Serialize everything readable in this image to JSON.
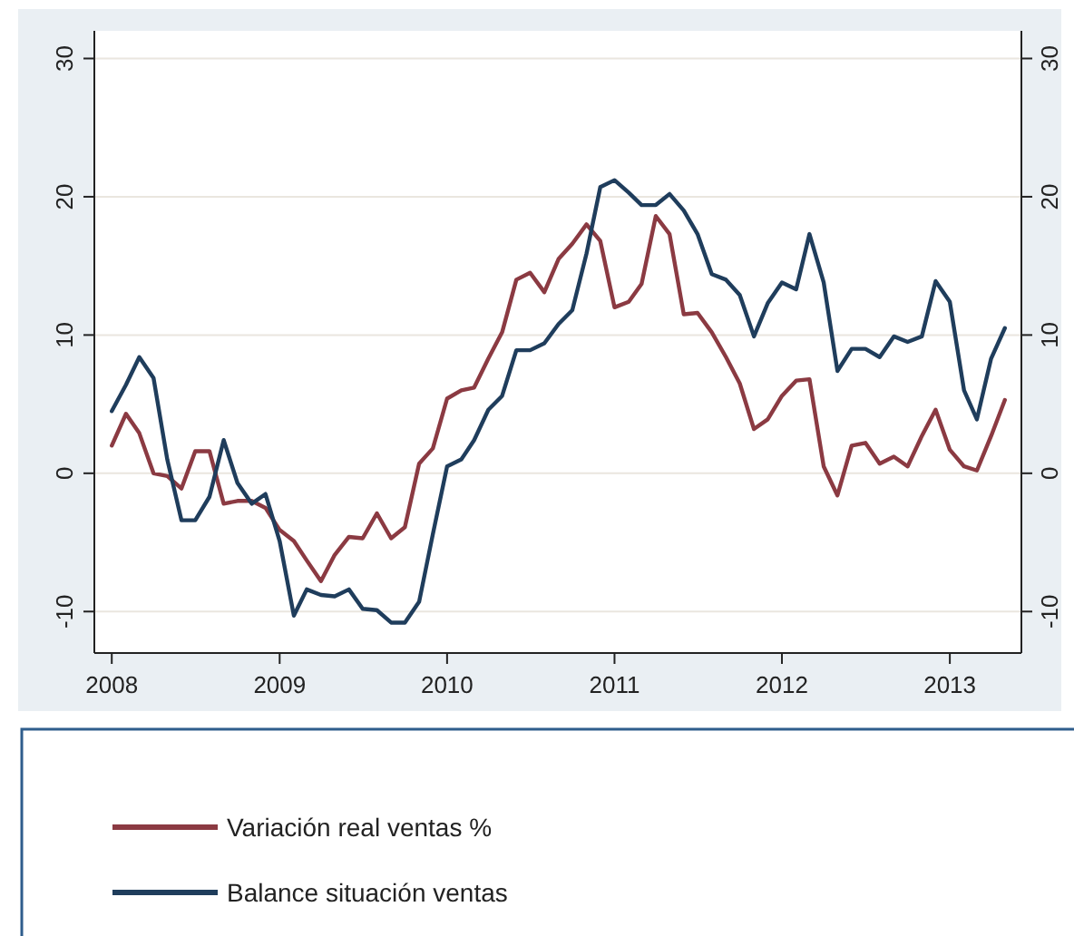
{
  "chart_data": {
    "type": "line",
    "x": [
      "2008-01",
      "2008-02",
      "2008-03",
      "2008-04",
      "2008-05",
      "2008-06",
      "2008-07",
      "2008-08",
      "2008-09",
      "2008-10",
      "2008-11",
      "2008-12",
      "2009-01",
      "2009-02",
      "2009-03",
      "2009-04",
      "2009-05",
      "2009-06",
      "2009-07",
      "2009-08",
      "2009-09",
      "2009-10",
      "2009-11",
      "2009-12",
      "2010-01",
      "2010-02",
      "2010-03",
      "2010-04",
      "2010-05",
      "2010-06",
      "2010-07",
      "2010-08",
      "2010-09",
      "2010-10",
      "2010-11",
      "2010-12",
      "2011-01",
      "2011-02",
      "2011-03",
      "2011-04",
      "2011-05",
      "2011-06",
      "2011-07",
      "2011-08",
      "2011-09",
      "2011-10",
      "2011-11",
      "2011-12",
      "2012-01",
      "2012-02",
      "2012-03",
      "2012-04",
      "2012-05",
      "2012-06",
      "2012-07",
      "2012-08",
      "2012-09",
      "2012-10",
      "2012-11",
      "2012-12",
      "2013-01",
      "2013-02",
      "2013-03",
      "2013-04",
      "2013-05"
    ],
    "series": [
      {
        "name": "Variación real ventas %",
        "color": "#8b3a42",
        "values": [
          2.0,
          4.3,
          2.9,
          0,
          -0.2,
          -1.1,
          1.6,
          1.6,
          -2.2,
          -2.0,
          -2.0,
          -2.5,
          -4.1,
          -4.9,
          -6.3,
          -7.8,
          -5.9,
          -4.6,
          -4.7,
          -2.9,
          -4.7,
          -3.9,
          0.7,
          1.8,
          5.4,
          6.0,
          6.2,
          8.3,
          10.2,
          14.0,
          14.5,
          13.1,
          15.5,
          16.6,
          18.0,
          16.8,
          12.0,
          12.4,
          13.7,
          18.6,
          17.3,
          11.5,
          11.6,
          10.2,
          8.4,
          6.5,
          3.2,
          3.9,
          5.6,
          6.7,
          6.8,
          0.5,
          -1.6,
          2.0,
          2.2,
          0.7,
          1.2,
          0.5,
          2.7,
          4.6,
          1.7,
          0.5,
          0.2,
          2.7,
          5.3
        ]
      },
      {
        "name": "Balance situación ventas",
        "color": "#1f3d5c",
        "values": [
          4.5,
          6.4,
          8.4,
          6.9,
          1.0,
          -3.4,
          -3.4,
          -1.7,
          2.4,
          -0.7,
          -2.2,
          -1.5,
          -4.9,
          -10.3,
          -8.4,
          -8.8,
          -8.9,
          -8.4,
          -9.8,
          -9.9,
          -10.8,
          -10.8,
          -9.3,
          -4.4,
          0.5,
          1.0,
          2.4,
          4.6,
          5.6,
          8.9,
          8.9,
          9.4,
          10.8,
          11.8,
          15.9,
          20.7,
          21.2,
          20.3,
          19.4,
          19.4,
          20.2,
          19.0,
          17.3,
          14.4,
          14.0,
          12.9,
          9.9,
          12.3,
          13.8,
          13.3,
          17.3,
          13.8,
          7.4,
          9.0,
          9.0,
          8.4,
          9.9,
          9.5,
          9.9,
          13.9,
          12.4,
          6.0,
          3.9,
          8.3,
          10.5
        ]
      }
    ],
    "xlim": [
      "2007-11-24",
      "2013-06-06"
    ],
    "xticks": [
      "2008",
      "2009",
      "2010",
      "2011",
      "2012",
      "2013"
    ],
    "ylim": [
      -13,
      32
    ],
    "yticks": [
      -10,
      0,
      10,
      20,
      30
    ],
    "y2lim": [
      -13,
      32
    ],
    "y2ticks": [
      -10,
      0,
      10,
      20,
      30
    ],
    "grid": "y",
    "legend": "bottom",
    "line_style": "solid",
    "marker": "none"
  }
}
